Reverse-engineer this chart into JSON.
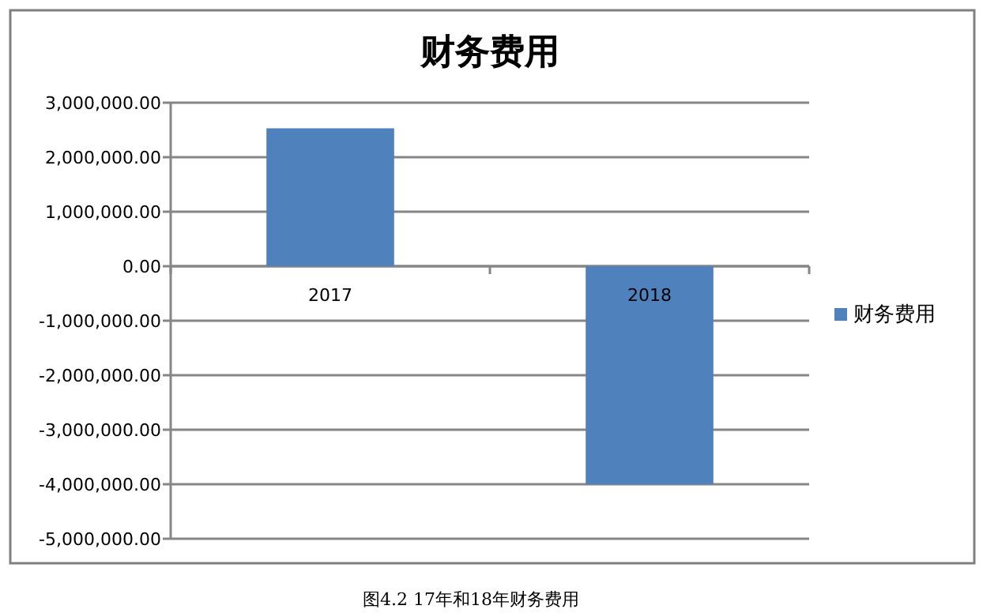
{
  "chart_data": {
    "type": "bar",
    "title": "财务费用",
    "categories": [
      "2017",
      "2018"
    ],
    "series": [
      {
        "name": "财务费用",
        "color": "#4f81bd",
        "values": [
          2530000,
          -4000000
        ]
      }
    ],
    "ylim": [
      -5000000,
      3000000
    ],
    "yticks": [
      {
        "value": -5000000,
        "label": "-5,000,000.00"
      },
      {
        "value": -4000000,
        "label": "-4,000,000.00"
      },
      {
        "value": -3000000,
        "label": "-3,000,000.00"
      },
      {
        "value": -2000000,
        "label": "-2,000,000.00"
      },
      {
        "value": -1000000,
        "label": "-1,000,000.00"
      },
      {
        "value": 0,
        "label": "0.00"
      },
      {
        "value": 1000000,
        "label": "1,000,000.00"
      },
      {
        "value": 2000000,
        "label": "2,000,000.00"
      },
      {
        "value": 3000000,
        "label": "3,000,000.00"
      }
    ],
    "grid": "y",
    "legend": "right",
    "annotations": [
      "图4.2 17年和18年财务费用"
    ]
  }
}
